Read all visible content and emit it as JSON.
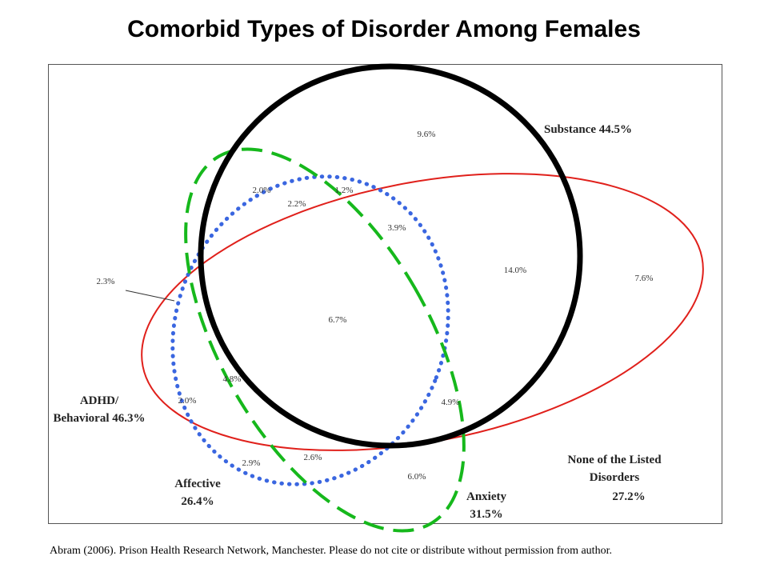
{
  "chart_data": {
    "type": "venn",
    "title": "Comorbid Types of Disorder Among Females",
    "sets": [
      {
        "name": "Substance",
        "label": "Substance 44.5%",
        "value": 44.5,
        "color": "#000000",
        "style": "solid"
      },
      {
        "name": "ADHD/Behavioral",
        "label_lines": [
          "ADHD/",
          "Behavioral 46.3%"
        ],
        "value": 46.3,
        "color": "#e0201b",
        "style": "solid"
      },
      {
        "name": "Affective",
        "label_lines": [
          "Affective",
          "26.4%"
        ],
        "value": 26.4,
        "color": "#3a66e0",
        "style": "dotted"
      },
      {
        "name": "Anxiety",
        "label_lines": [
          "Anxiety",
          "31.5%"
        ],
        "value": 31.5,
        "color": "#16b81c",
        "style": "dashed"
      }
    ],
    "none_label_lines": [
      "None of the Listed",
      "Disorders",
      "27.2%"
    ],
    "none_value": 27.2,
    "regions": [
      {
        "label": "9.6%",
        "value": 9.6
      },
      {
        "label": "2.0%",
        "value": 2.0
      },
      {
        "label": "1.2%",
        "value": 1.2
      },
      {
        "label": "2.2%",
        "value": 2.2
      },
      {
        "label": "3.9%",
        "value": 3.9
      },
      {
        "label": "14.0%",
        "value": 14.0
      },
      {
        "label": "7.6%",
        "value": 7.6
      },
      {
        "label": "2.3%",
        "value": 2.3
      },
      {
        "label": "6.7%",
        "value": 6.7
      },
      {
        "label": "4.8%",
        "value": 4.8
      },
      {
        "label": "2.0%",
        "value": 2.0
      },
      {
        "label": "4.9%",
        "value": 4.9
      },
      {
        "label": "2.6%",
        "value": 2.6
      },
      {
        "label": "2.9%",
        "value": 2.9
      },
      {
        "label": "6.0%",
        "value": 6.0
      }
    ]
  },
  "footer": "Abram (2006). Prison Health Research Network, Manchester.  Please do not cite or distribute without permission  from author."
}
